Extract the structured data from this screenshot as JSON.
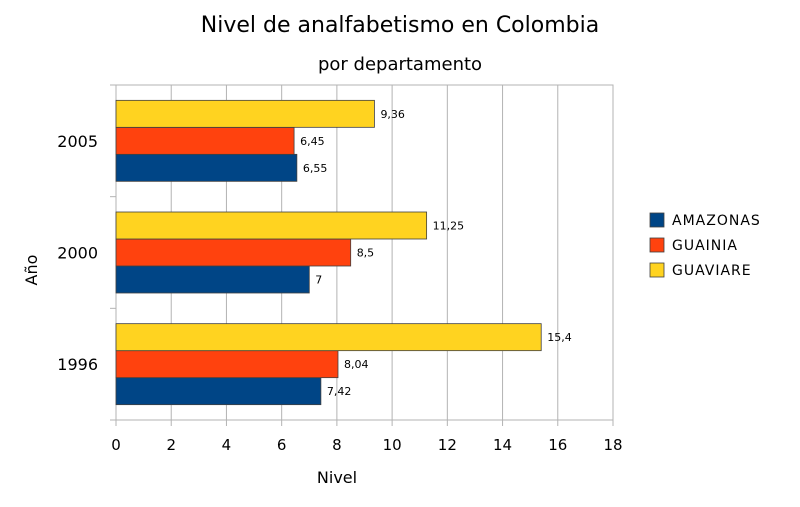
{
  "chart_data": {
    "type": "bar",
    "orientation": "horizontal",
    "title": "Nivel de analfabetismo en Colombia",
    "subtitle": "por departamento",
    "xlabel": "Nivel",
    "ylabel": "Año",
    "xlim": [
      0,
      18
    ],
    "x_ticks": [
      0,
      2,
      4,
      6,
      8,
      10,
      12,
      14,
      16,
      18
    ],
    "categories": [
      "1996",
      "2000",
      "2005"
    ],
    "grid": true,
    "legend_position": "right",
    "series": [
      {
        "name": "AMAZONAS",
        "color": "#004586",
        "values": [
          7.42,
          7,
          6.55
        ],
        "labels": [
          "7,42",
          "7",
          "6,55"
        ]
      },
      {
        "name": "GUAINIA",
        "color": "#ff420e",
        "values": [
          8.04,
          8.5,
          6.45
        ],
        "labels": [
          "8,04",
          "8,5",
          "6,45"
        ]
      },
      {
        "name": "GUAVIARE",
        "color": "#ffd320",
        "values": [
          15.4,
          11.25,
          9.36
        ],
        "labels": [
          "15,4",
          "11,25",
          "9,36"
        ]
      }
    ]
  }
}
